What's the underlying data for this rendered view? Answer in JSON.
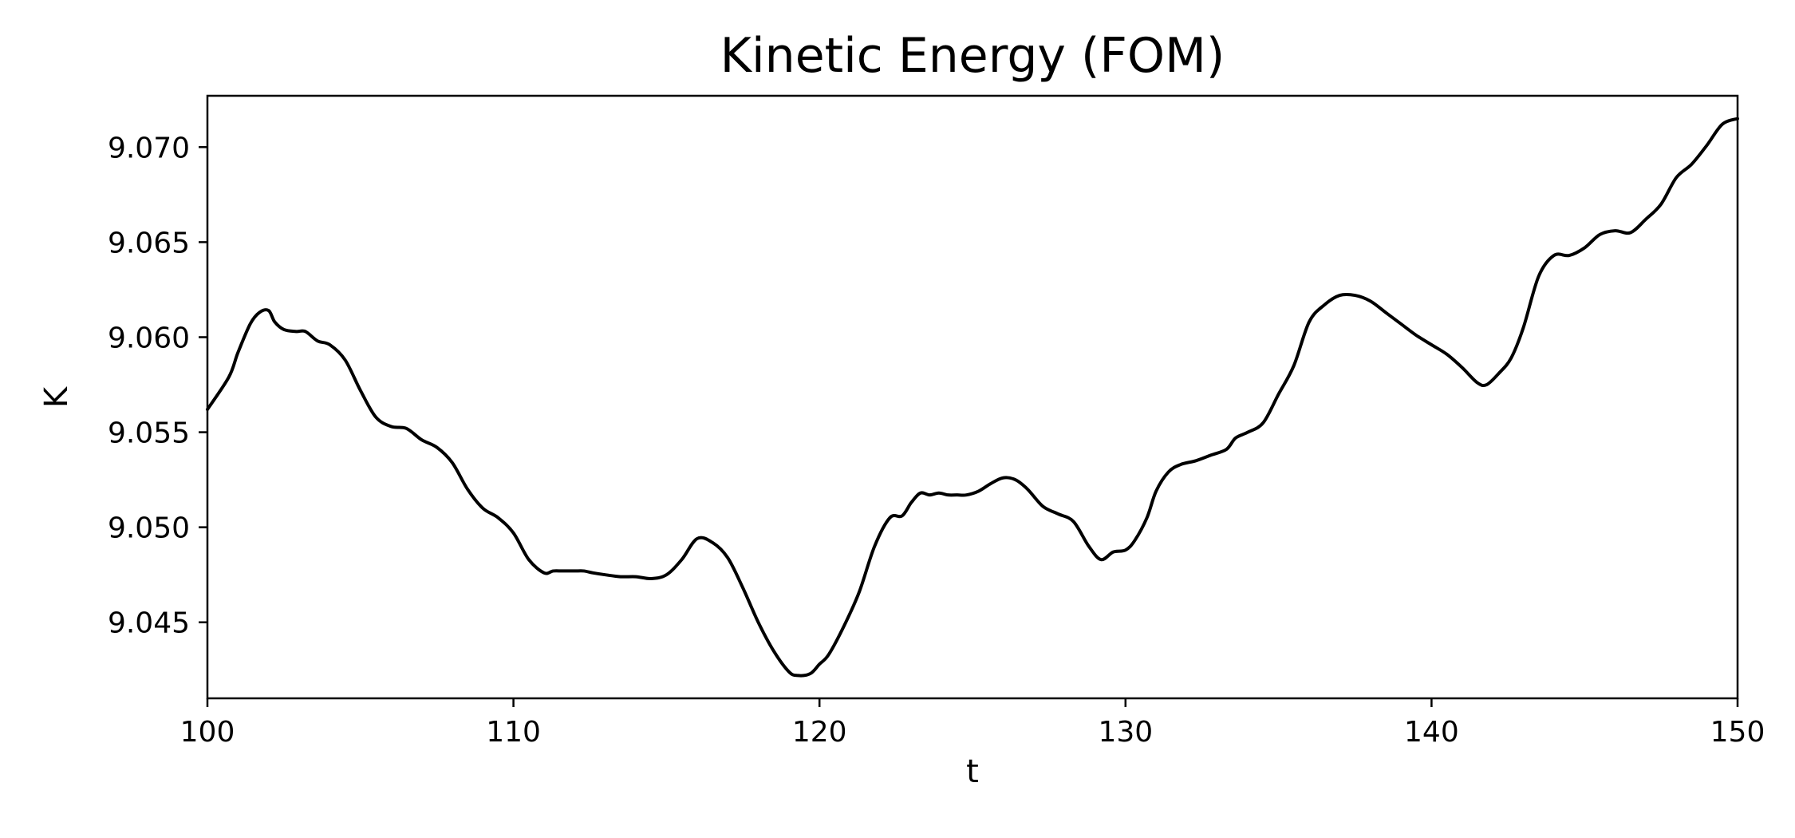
{
  "chart_data": {
    "type": "line",
    "title": "Kinetic Energy (FOM)",
    "xlabel": "t",
    "ylabel": "K",
    "xlim": [
      100,
      150
    ],
    "ylim": [
      9.041,
      9.0727
    ],
    "xticks": [
      100,
      110,
      120,
      130,
      140,
      150
    ],
    "xtick_labels": [
      "100",
      "110",
      "120",
      "130",
      "140",
      "150"
    ],
    "yticks": [
      9.045,
      9.05,
      9.055,
      9.06,
      9.065,
      9.07
    ],
    "ytick_labels": [
      "9.045",
      "9.050",
      "9.055",
      "9.060",
      "9.065",
      "9.070"
    ],
    "grid": false,
    "line_color": "#000000",
    "series": [
      {
        "x": [
          100.0,
          100.7,
          101.0,
          101.4,
          101.7,
          102.0,
          102.2,
          102.5,
          102.9,
          103.2,
          103.6,
          104.0,
          104.5,
          105.0,
          105.5,
          106.0,
          106.5,
          107.0,
          107.5,
          108.0,
          108.5,
          109.0,
          109.5,
          110.0,
          110.5,
          111.0,
          111.3,
          111.6,
          112.0,
          112.3,
          112.6,
          113.0,
          113.5,
          114.0,
          114.5,
          115.0,
          115.5,
          116.0,
          116.5,
          117.0,
          117.5,
          118.0,
          118.5,
          119.0,
          119.3,
          119.7,
          120.0,
          120.3,
          120.8,
          121.3,
          121.8,
          122.3,
          122.7,
          123.0,
          123.3,
          123.6,
          123.9,
          124.2,
          124.5,
          124.8,
          125.2,
          125.6,
          126.0,
          126.4,
          126.8,
          127.3,
          127.8,
          128.3,
          128.8,
          129.2,
          129.6,
          130.0,
          130.3,
          130.7,
          131.0,
          131.4,
          131.8,
          132.3,
          132.8,
          133.3,
          133.6,
          134.0,
          134.5,
          135.0,
          135.5,
          136.0,
          136.5,
          137.0,
          137.5,
          138.0,
          138.5,
          139.0,
          139.5,
          140.0,
          140.5,
          141.0,
          141.5,
          141.8,
          142.2,
          142.6,
          143.0,
          143.5,
          144.0,
          144.5,
          145.0,
          145.5,
          146.0,
          146.5,
          147.0,
          147.5,
          148.0,
          148.5,
          149.0,
          149.5,
          150.0
        ],
        "y": [
          9.0562,
          9.0579,
          9.0592,
          9.0607,
          9.0613,
          9.0614,
          9.0608,
          9.0604,
          9.0603,
          9.0603,
          9.0598,
          9.0596,
          9.0588,
          9.0572,
          9.0558,
          9.0553,
          9.0552,
          9.0546,
          9.0542,
          9.0534,
          9.052,
          9.051,
          9.0505,
          9.0497,
          9.0483,
          9.0476,
          9.0477,
          9.0477,
          9.0477,
          9.0477,
          9.0476,
          9.0475,
          9.0474,
          9.0474,
          9.0473,
          9.0475,
          9.0483,
          9.0494,
          9.0492,
          9.0484,
          9.0468,
          9.045,
          9.0435,
          9.0424,
          9.0422,
          9.0423,
          9.0428,
          9.0433,
          9.0448,
          9.0466,
          9.049,
          9.0505,
          9.0506,
          9.0513,
          9.0518,
          9.0517,
          9.0518,
          9.0517,
          9.0517,
          9.0517,
          9.0519,
          9.0523,
          9.0526,
          9.0525,
          9.052,
          9.0511,
          9.0507,
          9.0503,
          9.049,
          9.0483,
          9.0487,
          9.0488,
          9.0493,
          9.0505,
          9.0519,
          9.0529,
          9.0533,
          9.0535,
          9.0538,
          9.0541,
          9.0547,
          9.055,
          9.0555,
          9.057,
          9.0585,
          9.0608,
          9.0617,
          9.0622,
          9.0622,
          9.0619,
          9.0613,
          9.0607,
          9.0601,
          9.0596,
          9.0591,
          9.0584,
          9.0576,
          9.0575,
          9.0581,
          9.0589,
          9.0605,
          9.0632,
          9.0643,
          9.0643,
          9.0647,
          9.0654,
          9.0656,
          9.0655,
          9.0662,
          9.067,
          9.0684,
          9.0691,
          9.0701,
          9.0712,
          9.0715
        ]
      }
    ]
  }
}
